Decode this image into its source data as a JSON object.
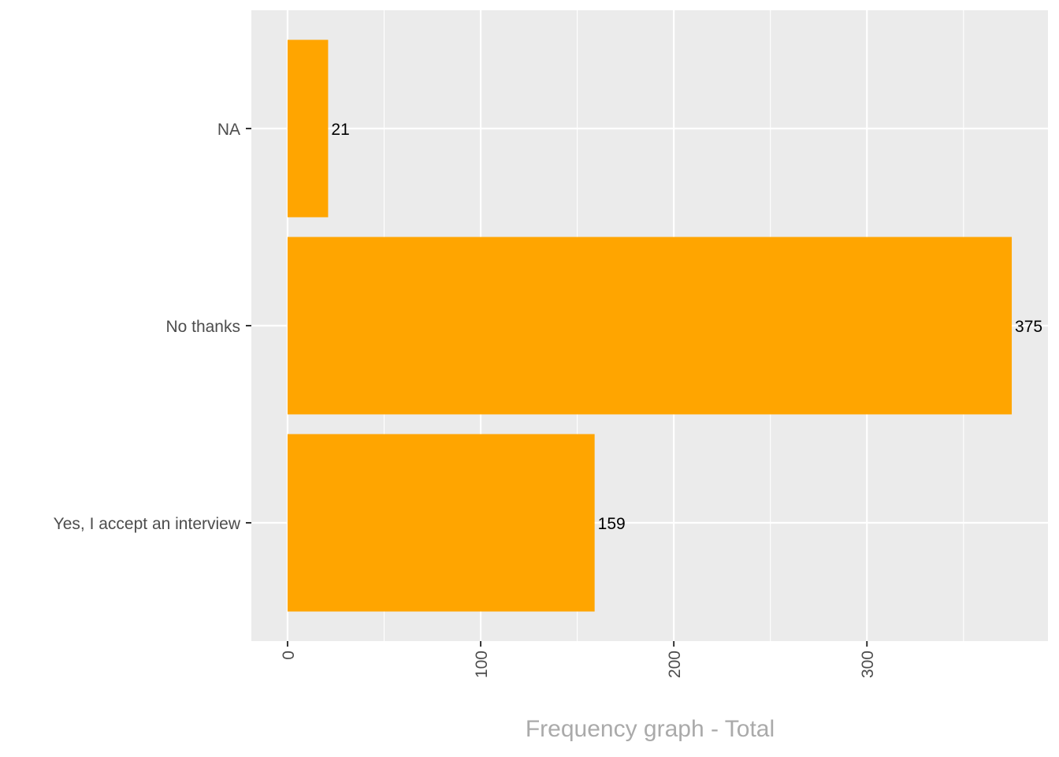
{
  "chart_data": {
    "type": "bar",
    "orientation": "horizontal",
    "categories": [
      "NA",
      "No thanks",
      "Yes, I accept an interview"
    ],
    "values": [
      21,
      375,
      159
    ],
    "data_labels": [
      "21",
      "375",
      "159"
    ],
    "title": "",
    "xlabel": "Frequency graph - Total",
    "ylabel": "",
    "xlim": [
      -18.75,
      393.75
    ],
    "x_ticks": [
      0,
      100,
      200,
      300
    ],
    "x_tick_labels": [
      "0",
      "100",
      "200",
      "300"
    ],
    "grid": true,
    "legend": "none",
    "colors": {
      "bar": "#FFA500",
      "panel_background": "#EBEBEB",
      "gridline": "#FFFFFF",
      "axis_text": "#4D4D4D",
      "xlabel_text": "#AAAAAA",
      "data_label": "#000000"
    }
  }
}
